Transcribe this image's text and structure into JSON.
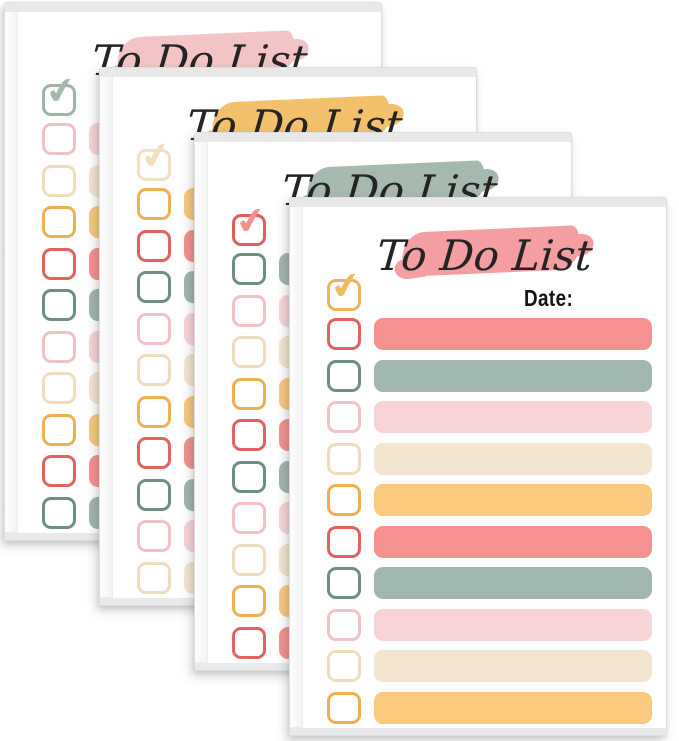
{
  "product": {
    "name": "to-do-list-notepad-stack",
    "title_text": "To Do List",
    "date_label": "Date:",
    "rows_per_pad": 10,
    "pad_count": 4
  },
  "checkmark_glyph": "✔",
  "palette": {
    "salmon": {
      "bar": "#F5918E",
      "outline": "#E2625F"
    },
    "sage": {
      "bar": "#A1B6AC",
      "outline": "#6F8E83"
    },
    "blush": {
      "bar": "#F9D4D6",
      "outline": "#F1C2C5"
    },
    "cream": {
      "bar": "#F4E5D0",
      "outline": "#EEDDC0"
    },
    "yellow": {
      "bar": "#FAC97E",
      "outline": "#EFAF52"
    }
  },
  "edge_colors": {
    "paper_side": "#F3F3F3",
    "paper_top": "#E8E8E8"
  },
  "pads": [
    {
      "label": "back-pad",
      "brush_color": "#F2C4C5",
      "check_outline": "#9FB3A7",
      "check_mark": "#A5B8AC",
      "rows": [
        "blush",
        "cream",
        "yellow",
        "salmon",
        "sage",
        "blush",
        "cream",
        "yellow",
        "salmon",
        "sage"
      ]
    },
    {
      "label": "second-pad",
      "brush_color": "#F3C16C",
      "check_outline": "#F0E2C2",
      "check_mark": "#EFE0BE",
      "rows": [
        "yellow",
        "salmon",
        "sage",
        "blush",
        "cream",
        "yellow",
        "salmon",
        "sage",
        "blush",
        "cream"
      ]
    },
    {
      "label": "third-pad",
      "brush_color": "#A6B9AF",
      "check_outline": "#DF5F5C",
      "check_mark": "#F2908B",
      "rows": [
        "sage",
        "blush",
        "cream",
        "yellow",
        "salmon",
        "sage",
        "blush",
        "cream",
        "yellow",
        "salmon"
      ]
    },
    {
      "label": "front-pad",
      "brush_color": "#F59EA2",
      "check_outline": "#EBB45F",
      "check_mark": "#EFBC63",
      "rows": [
        "salmon",
        "sage",
        "blush",
        "cream",
        "yellow",
        "salmon",
        "sage",
        "blush",
        "cream",
        "yellow"
      ]
    }
  ]
}
